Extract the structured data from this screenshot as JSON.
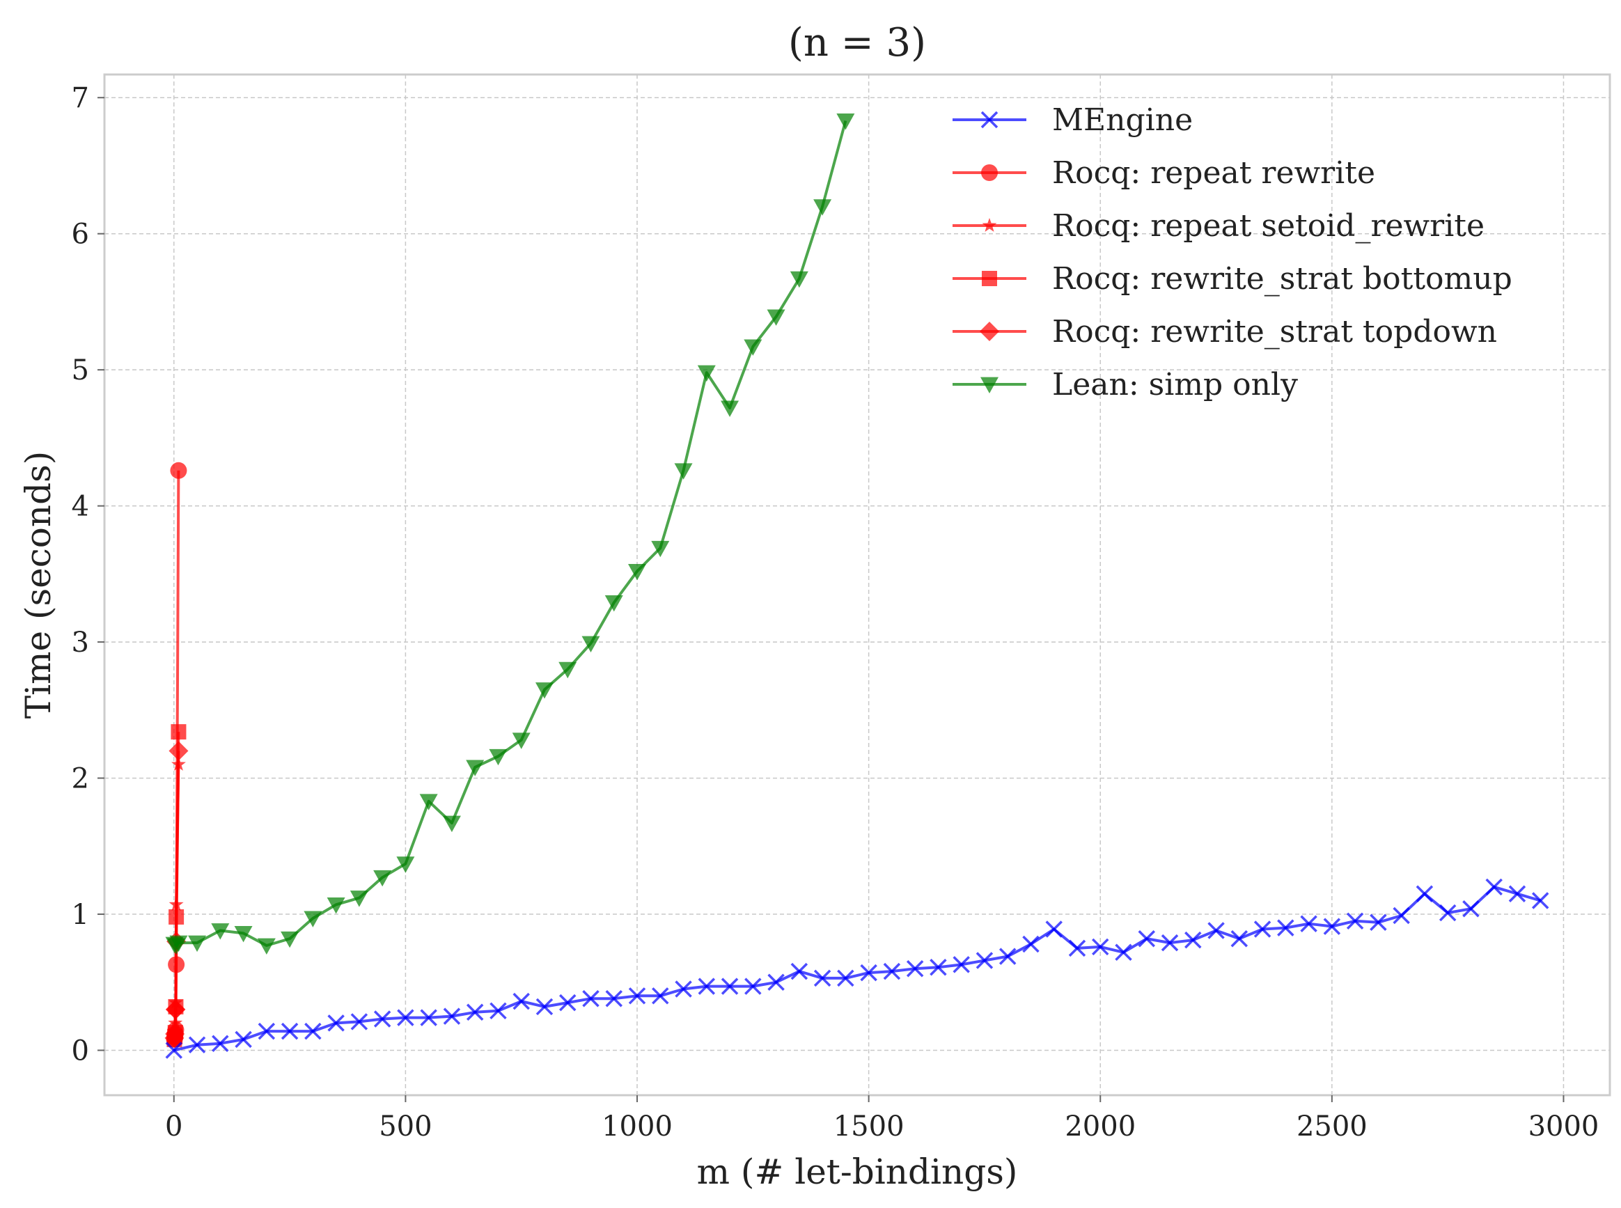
{
  "chart_data": {
    "type": "line",
    "title": "(n = 3)",
    "xlabel": "m (# let-bindings)",
    "ylabel": "Time (seconds)",
    "xlim": [
      -150,
      3100
    ],
    "ylim": [
      -0.33,
      7.17
    ],
    "xticks": [
      0,
      500,
      1000,
      1500,
      2000,
      2500,
      3000
    ],
    "yticks": [
      0,
      1,
      2,
      3,
      4,
      5,
      6,
      7
    ],
    "grid": true,
    "legend_position": "top-right",
    "series": [
      {
        "name": "MEngine",
        "color": "#0000ff",
        "marker": "x",
        "x": [
          0,
          50,
          100,
          150,
          200,
          250,
          300,
          350,
          400,
          450,
          500,
          550,
          600,
          650,
          700,
          750,
          800,
          850,
          900,
          950,
          1000,
          1050,
          1100,
          1150,
          1200,
          1250,
          1300,
          1350,
          1400,
          1450,
          1500,
          1550,
          1600,
          1650,
          1700,
          1750,
          1800,
          1850,
          1900,
          1950,
          2000,
          2050,
          2100,
          2150,
          2200,
          2250,
          2300,
          2350,
          2400,
          2450,
          2500,
          2550,
          2600,
          2650,
          2700,
          2750,
          2800,
          2850,
          2900,
          2950
        ],
        "y": [
          0.0,
          0.04,
          0.05,
          0.08,
          0.14,
          0.14,
          0.14,
          0.2,
          0.21,
          0.23,
          0.24,
          0.24,
          0.25,
          0.28,
          0.29,
          0.36,
          0.32,
          0.35,
          0.38,
          0.38,
          0.4,
          0.4,
          0.45,
          0.47,
          0.47,
          0.47,
          0.5,
          0.58,
          0.53,
          0.53,
          0.57,
          0.58,
          0.6,
          0.61,
          0.63,
          0.66,
          0.69,
          0.78,
          0.89,
          0.75,
          0.76,
          0.72,
          0.82,
          0.79,
          0.81,
          0.88,
          0.82,
          0.89,
          0.9,
          0.93,
          0.91,
          0.95,
          0.94,
          0.99,
          1.15,
          1.01,
          1.04,
          1.2,
          1.15,
          1.1
        ]
      },
      {
        "name": "Rocq: repeat rewrite",
        "color": "#ff0000",
        "marker": "circle",
        "x": [
          1,
          2,
          3,
          4,
          5,
          10
        ],
        "y": [
          0.08,
          0.1,
          0.12,
          0.15,
          0.63,
          4.26
        ]
      },
      {
        "name": "Rocq: repeat setoid_rewrite",
        "color": "#ff0000",
        "marker": "star",
        "x": [
          1,
          2,
          3,
          4,
          5,
          10
        ],
        "y": [
          0.09,
          0.12,
          0.2,
          0.35,
          1.07,
          2.1
        ]
      },
      {
        "name": "Rocq: rewrite_strat bottomup",
        "color": "#ff0000",
        "marker": "square",
        "x": [
          1,
          2,
          3,
          4,
          5,
          10
        ],
        "y": [
          0.08,
          0.1,
          0.13,
          0.32,
          0.98,
          2.34
        ]
      },
      {
        "name": "Rocq: rewrite_strat topdown",
        "color": "#ff0000",
        "marker": "diamond",
        "x": [
          1,
          2,
          3,
          4,
          5,
          10
        ],
        "y": [
          0.09,
          0.12,
          0.3,
          0.3,
          0.8,
          2.2
        ]
      },
      {
        "name": "Lean: simp only",
        "color": "#008000",
        "marker": "triangle-down",
        "x": [
          1,
          5,
          10,
          50,
          100,
          150,
          200,
          250,
          300,
          350,
          400,
          450,
          500,
          550,
          600,
          650,
          700,
          750,
          800,
          850,
          900,
          950,
          1000,
          1050,
          1100,
          1150,
          1200,
          1250,
          1300,
          1350,
          1400,
          1450
        ],
        "y": [
          0.78,
          0.77,
          0.79,
          0.79,
          0.88,
          0.86,
          0.77,
          0.82,
          0.97,
          1.07,
          1.12,
          1.27,
          1.37,
          1.83,
          1.67,
          2.08,
          2.16,
          2.28,
          2.65,
          2.8,
          2.99,
          3.29,
          3.52,
          3.69,
          4.26,
          4.98,
          4.72,
          5.17,
          5.39,
          5.67,
          6.2,
          6.83
        ]
      }
    ]
  }
}
